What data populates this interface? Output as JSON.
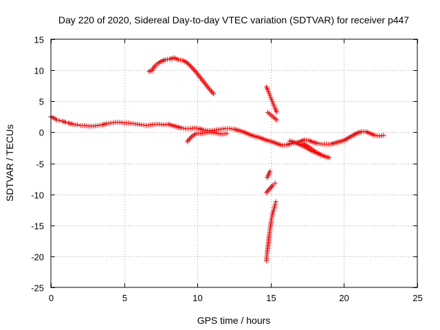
{
  "chart_data": {
    "type": "scatter",
    "title": "Day 220 of 2020, Sidereal Day-to-day VTEC variation (SDTVAR) for receiver p447",
    "xlabel": "GPS time / hours",
    "ylabel": "SDTVAR / TECUs",
    "xlim": [
      0,
      25
    ],
    "ylim": [
      -25,
      15
    ],
    "xticks": [
      0,
      5,
      10,
      15,
      20,
      25
    ],
    "yticks": [
      15,
      10,
      5,
      0,
      -5,
      -10,
      -15,
      -20,
      -25
    ],
    "xtick_labels": [
      "0",
      "5",
      "10",
      "15",
      "20",
      "25"
    ],
    "ytick_labels": [
      "15",
      "10",
      "5",
      "0",
      "-5",
      "-10",
      "-15",
      "-20",
      "-25"
    ],
    "grid": true,
    "marker": "plus",
    "color": "#ff0000",
    "series": [
      {
        "name": "main-trace",
        "points": [
          [
            0.0,
            2.5
          ],
          [
            0.2,
            2.3
          ],
          [
            0.4,
            2.0
          ],
          [
            0.6,
            1.9
          ],
          [
            0.8,
            1.8
          ],
          [
            1.0,
            1.6
          ],
          [
            1.2,
            1.5
          ],
          [
            1.5,
            1.3
          ],
          [
            1.8,
            1.2
          ],
          [
            2.0,
            1.1
          ],
          [
            2.3,
            1.1
          ],
          [
            2.6,
            1.0
          ],
          [
            2.9,
            1.0
          ],
          [
            3.2,
            1.1
          ],
          [
            3.5,
            1.2
          ],
          [
            3.8,
            1.4
          ],
          [
            4.1,
            1.5
          ],
          [
            4.4,
            1.6
          ],
          [
            4.7,
            1.6
          ],
          [
            5.0,
            1.5
          ],
          [
            5.3,
            1.5
          ],
          [
            5.6,
            1.4
          ],
          [
            5.9,
            1.3
          ],
          [
            6.2,
            1.2
          ],
          [
            6.5,
            1.1
          ],
          [
            6.8,
            1.2
          ],
          [
            7.1,
            1.3
          ],
          [
            7.4,
            1.3
          ],
          [
            7.7,
            1.2
          ],
          [
            8.0,
            1.3
          ],
          [
            8.3,
            1.1
          ],
          [
            8.6,
            0.9
          ],
          [
            8.9,
            0.7
          ],
          [
            9.2,
            0.6
          ],
          [
            9.5,
            0.6
          ],
          [
            9.8,
            0.7
          ],
          [
            10.1,
            0.6
          ],
          [
            10.4,
            0.4
          ],
          [
            10.7,
            0.3
          ],
          [
            11.0,
            0.3
          ],
          [
            11.3,
            0.4
          ],
          [
            11.6,
            0.5
          ],
          [
            11.9,
            0.6
          ],
          [
            12.2,
            0.6
          ],
          [
            12.5,
            0.5
          ],
          [
            12.8,
            0.3
          ],
          [
            13.1,
            0.1
          ],
          [
            13.4,
            -0.2
          ],
          [
            13.7,
            -0.5
          ],
          [
            14.0,
            -0.7
          ],
          [
            14.3,
            -0.9
          ],
          [
            14.6,
            -1.2
          ],
          [
            14.9,
            -1.4
          ],
          [
            15.2,
            -1.6
          ],
          [
            15.5,
            -1.9
          ],
          [
            15.8,
            -2.1
          ],
          [
            16.1,
            -2.0
          ],
          [
            16.4,
            -1.8
          ],
          [
            16.7,
            -1.7
          ],
          [
            17.0,
            -1.5
          ],
          [
            17.3,
            -1.2
          ],
          [
            17.6,
            -1.3
          ],
          [
            17.9,
            -1.6
          ],
          [
            18.2,
            -1.8
          ],
          [
            18.5,
            -1.9
          ],
          [
            18.8,
            -1.9
          ],
          [
            19.1,
            -1.9
          ],
          [
            19.4,
            -1.7
          ],
          [
            19.7,
            -1.5
          ],
          [
            20.0,
            -1.3
          ],
          [
            20.3,
            -0.9
          ],
          [
            20.6,
            -0.5
          ],
          [
            20.9,
            -0.1
          ],
          [
            21.2,
            0.1
          ],
          [
            21.5,
            0.1
          ],
          [
            21.8,
            -0.2
          ],
          [
            22.1,
            -0.5
          ],
          [
            22.4,
            -0.6
          ],
          [
            22.7,
            -0.5
          ]
        ]
      },
      {
        "name": "lower-branch-10h",
        "points": [
          [
            9.3,
            -1.5
          ],
          [
            9.6,
            -0.7
          ],
          [
            9.9,
            -0.2
          ],
          [
            10.2,
            -0.2
          ],
          [
            10.5,
            -0.1
          ],
          [
            10.8,
            0.0
          ],
          [
            11.2,
            -0.1
          ],
          [
            11.6,
            -0.3
          ],
          [
            12.0,
            -0.2
          ]
        ]
      },
      {
        "name": "arc-8h",
        "points": [
          [
            6.7,
            9.8
          ],
          [
            6.9,
            10.0
          ],
          [
            7.1,
            10.7
          ],
          [
            7.3,
            11.1
          ],
          [
            7.5,
            11.4
          ],
          [
            7.8,
            11.7
          ],
          [
            8.1,
            11.8
          ],
          [
            8.4,
            12.0
          ],
          [
            8.7,
            11.7
          ],
          [
            9.0,
            11.6
          ],
          [
            9.3,
            11.2
          ],
          [
            9.6,
            10.5
          ],
          [
            9.9,
            9.7
          ],
          [
            10.2,
            8.8
          ],
          [
            10.5,
            7.9
          ],
          [
            10.8,
            7.0
          ],
          [
            11.1,
            6.2
          ]
        ]
      },
      {
        "name": "drop-15h",
        "points": [
          [
            14.7,
            7.3
          ],
          [
            14.8,
            6.8
          ],
          [
            14.9,
            6.2
          ],
          [
            15.0,
            5.6
          ],
          [
            15.1,
            5.0
          ],
          [
            15.2,
            4.4
          ],
          [
            15.3,
            3.8
          ],
          [
            15.4,
            3.3
          ]
        ]
      },
      {
        "name": "short-15h",
        "points": [
          [
            14.8,
            3.2
          ],
          [
            15.0,
            2.8
          ],
          [
            15.2,
            2.4
          ],
          [
            15.4,
            2.0
          ]
        ]
      },
      {
        "name": "neg-6-15h",
        "points": [
          [
            14.75,
            -7.3
          ],
          [
            14.85,
            -6.8
          ],
          [
            14.95,
            -6.3
          ]
        ]
      },
      {
        "name": "neg-9-15h",
        "points": [
          [
            14.7,
            -9.7
          ],
          [
            14.85,
            -9.3
          ],
          [
            15.0,
            -8.9
          ],
          [
            15.15,
            -8.5
          ],
          [
            15.3,
            -8.2
          ]
        ]
      },
      {
        "name": "plunge-15h",
        "points": [
          [
            14.7,
            -20.7
          ],
          [
            14.75,
            -19.5
          ],
          [
            14.8,
            -18.5
          ],
          [
            14.85,
            -17.5
          ],
          [
            14.9,
            -16.5
          ],
          [
            14.95,
            -15.6
          ],
          [
            15.0,
            -14.8
          ],
          [
            15.05,
            -14.0
          ],
          [
            15.1,
            -13.3
          ],
          [
            15.2,
            -12.5
          ],
          [
            15.3,
            -11.6
          ],
          [
            15.35,
            -11.2
          ]
        ]
      },
      {
        "name": "dip-18h",
        "points": [
          [
            16.3,
            -1.4
          ],
          [
            16.6,
            -1.6
          ],
          [
            16.9,
            -1.9
          ],
          [
            17.2,
            -2.2
          ],
          [
            17.5,
            -2.6
          ],
          [
            17.8,
            -3.0
          ],
          [
            18.1,
            -3.3
          ],
          [
            18.4,
            -3.6
          ],
          [
            18.7,
            -3.9
          ],
          [
            19.0,
            -4.1
          ]
        ]
      },
      {
        "name": "dip-17h",
        "points": [
          [
            17.2,
            -1.8
          ],
          [
            17.5,
            -2.2
          ],
          [
            17.8,
            -2.7
          ],
          [
            18.1,
            -3.2
          ],
          [
            18.4,
            -3.6
          ]
        ]
      }
    ]
  }
}
